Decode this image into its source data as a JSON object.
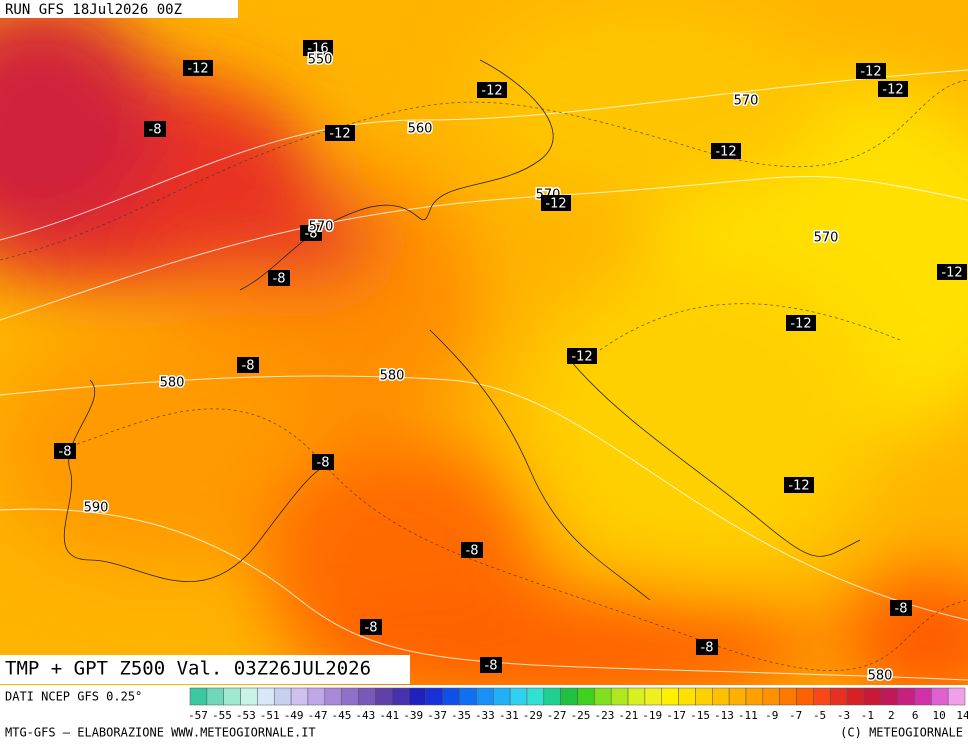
{
  "header": {
    "run": "RUN GFS 18Jul2026 00Z",
    "title": "TMP + GPT Z500 Val. 03Z26JUL2026"
  },
  "contour_labels": [
    "-16",
    "550",
    "-12",
    "-8",
    "-12",
    "-12",
    "560",
    "570",
    "-12",
    "-12",
    "-12",
    "570",
    "-12",
    "-8",
    "570",
    "570",
    "-12",
    "-8",
    "-12",
    "-12",
    "-8",
    "580",
    "580",
    "-8",
    "-8",
    "-12",
    "590",
    "-8",
    "-8",
    "-8",
    "-8",
    "-8",
    "580"
  ],
  "colorbar": {
    "source": "DATI NCEP GFS 0.25°",
    "ticks": [
      "-57",
      "-55",
      "-53",
      "-51",
      "-49",
      "-47",
      "-45",
      "-43",
      "-41",
      "-39",
      "-37",
      "-35",
      "-33",
      "-31",
      "-29",
      "-27",
      "-25",
      "-23",
      "-21",
      "-19",
      "-17",
      "-15",
      "-13",
      "-11",
      "-9",
      "-7",
      "-5",
      "-3",
      "-1",
      "2",
      "6",
      "10",
      "14"
    ],
    "colors": [
      "#3cc8a0",
      "#6ed8b8",
      "#a0e8d0",
      "#c8f4e8",
      "#d8e8f8",
      "#c8d0f0",
      "#d0c0f0",
      "#c0a8e8",
      "#a888d8",
      "#9070c8",
      "#7858b8",
      "#6040a8",
      "#4830b0",
      "#2020c0",
      "#1830d8",
      "#1050e8",
      "#1070f0",
      "#1890f8",
      "#20b0f8",
      "#30d0f0",
      "#30e0d0",
      "#20d090",
      "#20c040",
      "#40d020",
      "#80e020",
      "#b0e820",
      "#d8f020",
      "#f0f020",
      "#fff000",
      "#ffe000",
      "#ffd000",
      "#ffc000",
      "#ffb000",
      "#ffa000",
      "#ff9000",
      "#ff7800",
      "#ff6000",
      "#f84818",
      "#e83020",
      "#d82028",
      "#c81838",
      "#c01858",
      "#c82080",
      "#d030a8",
      "#e060d0",
      "#f0a0e8"
    ]
  },
  "footer": {
    "left": "MTG-GFS — ELABORAZIONE WWW.METEOGIORNALE.IT",
    "right": "(C) METEOGIORNALE"
  }
}
